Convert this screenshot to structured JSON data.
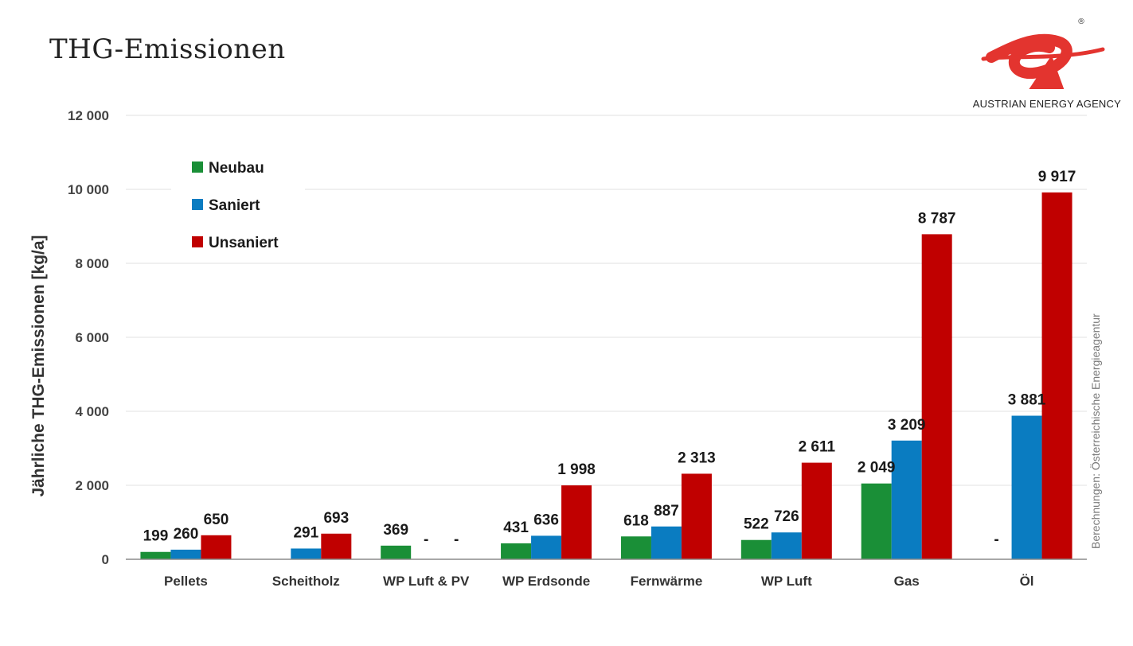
{
  "header": {
    "title": "THG-Emissionen",
    "logo_text": "AUSTRIAN ENERGY AGENCY",
    "logo_mark": "eA",
    "logo_registered": "®"
  },
  "source_note": "Berechnungen: Österreichische Energieagentur",
  "colors": {
    "neubau": "#1a8f37",
    "saniert": "#0a7cc1",
    "unsaniert": "#c00000",
    "grid": "#e6e6e6",
    "axis": "#8c8c8c",
    "logo": "#e3342f"
  },
  "chart_data": {
    "type": "bar",
    "title": "",
    "xlabel": "",
    "ylabel": "Jährliche THG-Emissionen [kg/a]",
    "ylim": [
      0,
      12000
    ],
    "yticks": [
      0,
      2000,
      4000,
      6000,
      8000,
      10000,
      12000
    ],
    "ytick_labels": [
      "0",
      "2 000",
      "4 000",
      "6 000",
      "8 000",
      "10 000",
      "12 000"
    ],
    "grid": true,
    "legend_position": "top-left",
    "categories": [
      "Pellets",
      "Scheitholz",
      "WP Luft & PV",
      "WP Erdsonde",
      "Fernwärme",
      "WP Luft",
      "Gas",
      "Öl"
    ],
    "series": [
      {
        "name": "Neubau",
        "color": "#1a8f37",
        "values": [
          199,
          null,
          369,
          431,
          618,
          522,
          2049,
          null
        ],
        "labels": [
          "199",
          "",
          "369",
          "431",
          "618",
          "522",
          "2 049",
          "-"
        ]
      },
      {
        "name": "Saniert",
        "color": "#0a7cc1",
        "values": [
          260,
          291,
          null,
          636,
          887,
          726,
          3209,
          3881
        ],
        "labels": [
          "260",
          "291",
          "-",
          "636",
          "887",
          "726",
          "3 209",
          "3 881"
        ]
      },
      {
        "name": "Unsaniert",
        "color": "#c00000",
        "values": [
          650,
          693,
          null,
          1998,
          2313,
          2611,
          8787,
          9917
        ],
        "labels": [
          "650",
          "693",
          "-",
          "1 998",
          "2 313",
          "2 611",
          "8 787",
          "9 917"
        ]
      }
    ]
  }
}
